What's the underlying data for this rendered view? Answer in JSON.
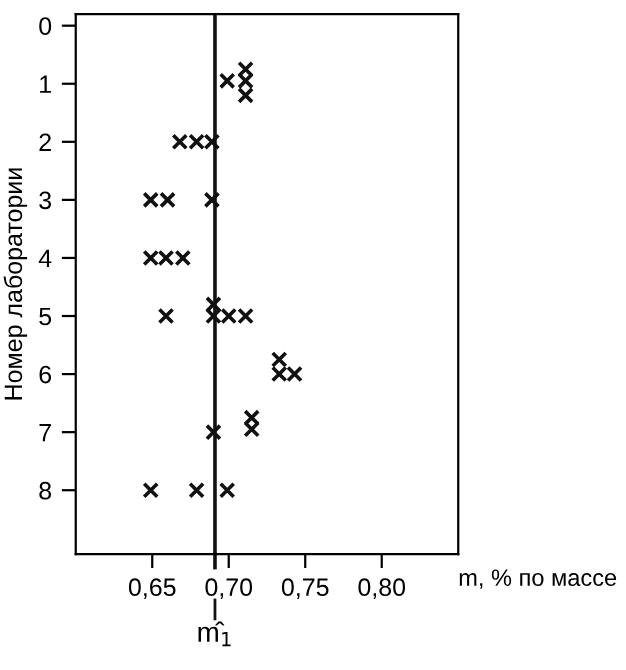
{
  "chart_data": {
    "type": "scatter",
    "xlabel": "m, % по массе",
    "ylabel": "Номер лаборатории",
    "series": [
      {
        "color": "#111111",
        "x": [
          0.699,
          0.711,
          0.711,
          0.711,
          0.668,
          0.679,
          0.689,
          0.649,
          0.66,
          0.689,
          0.649,
          0.659,
          0.67,
          0.659,
          0.69,
          0.69,
          0.7,
          0.711,
          0.733,
          0.733,
          0.743,
          0.69,
          0.715,
          0.715,
          0.649,
          0.679,
          0.699
        ],
        "values": [
          0.95,
          0.75,
          0.95,
          1.2,
          2,
          2,
          2,
          3,
          3,
          3,
          4,
          4,
          4,
          5,
          4.8,
          5,
          5,
          5,
          5.75,
          6,
          6,
          7,
          6.75,
          6.95,
          8,
          8,
          8
        ]
      }
    ],
    "marker": "cross",
    "xlim": [
      0.6,
      0.85
    ],
    "ylim": [
      9.1,
      -0.2
    ],
    "xticks": [
      {
        "value": 0.65,
        "label": "0,65"
      },
      {
        "value": 0.7,
        "label": "0,70"
      },
      {
        "value": 0.75,
        "label": "0,75"
      },
      {
        "value": 0.8,
        "label": "0,80"
      }
    ],
    "yticks": [
      0,
      1,
      2,
      3,
      4,
      5,
      6,
      7,
      8
    ],
    "ref_lines": [
      {
        "axis": "x",
        "value": 0.691,
        "label": "m̂$_{1}$",
        "color": "#111111",
        "line_style": "solid"
      }
    ],
    "grid": false,
    "legend": false
  }
}
